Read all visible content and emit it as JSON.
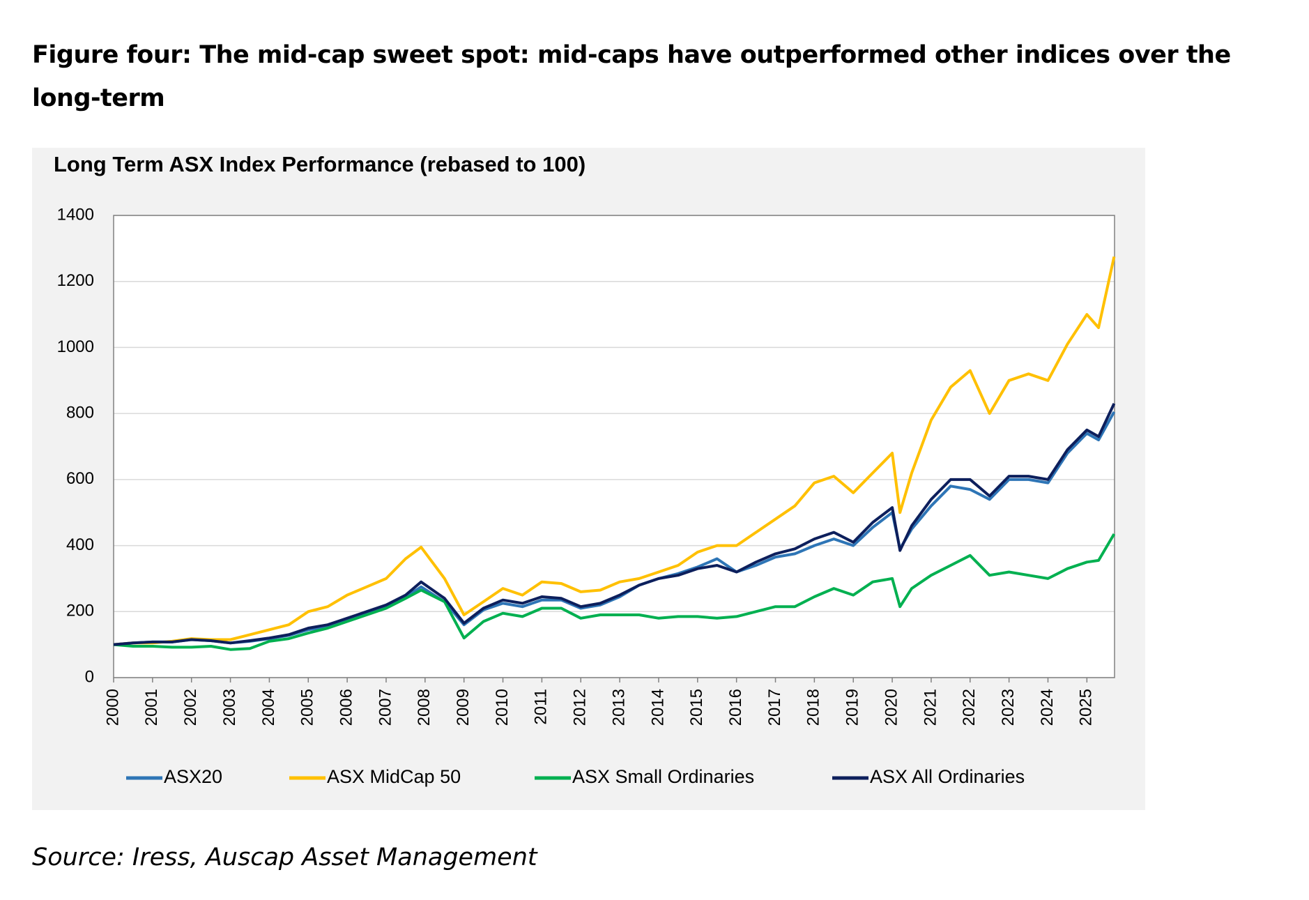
{
  "heading": "Figure four: The mid-cap sweet spot: mid-caps have outperformed other indices over the long-term",
  "source": "Source: Iress, Auscap Asset Management",
  "chart_data": {
    "type": "line",
    "title": "Long Term ASX Index Performance (rebased to 100)",
    "x": [
      2000,
      2000.5,
      2001,
      2001.5,
      2002,
      2002.5,
      2003,
      2003.5,
      2004,
      2004.5,
      2005,
      2005.5,
      2006,
      2006.5,
      2007,
      2007.5,
      2007.9,
      2008.5,
      2009,
      2009.5,
      2010,
      2010.5,
      2011,
      2011.5,
      2012,
      2012.5,
      2013,
      2013.5,
      2014,
      2014.5,
      2015,
      2015.5,
      2016,
      2016.5,
      2017,
      2017.5,
      2018,
      2018.5,
      2019,
      2019.5,
      2020,
      2020.2,
      2020.5,
      2021,
      2021.5,
      2022,
      2022.5,
      2023,
      2023.5,
      2024,
      2024.5,
      2025,
      2025.3,
      2025.7
    ],
    "series": [
      {
        "name": "ASX20",
        "color": "#2e75b6",
        "values": [
          100,
          105,
          108,
          108,
          115,
          112,
          105,
          110,
          118,
          128,
          145,
          155,
          175,
          195,
          215,
          245,
          275,
          230,
          160,
          205,
          225,
          215,
          235,
          235,
          210,
          220,
          245,
          280,
          300,
          315,
          335,
          360,
          320,
          340,
          365,
          375,
          400,
          420,
          400,
          455,
          500,
          390,
          450,
          520,
          580,
          570,
          540,
          600,
          600,
          590,
          680,
          740,
          720,
          805
        ]
      },
      {
        "name": "ASX MidCap 50",
        "color": "#ffc000",
        "values": [
          100,
          105,
          105,
          110,
          118,
          115,
          115,
          130,
          145,
          160,
          200,
          215,
          250,
          275,
          300,
          360,
          395,
          300,
          190,
          230,
          270,
          250,
          290,
          285,
          260,
          265,
          290,
          300,
          320,
          340,
          380,
          400,
          400,
          440,
          480,
          520,
          590,
          610,
          560,
          620,
          680,
          500,
          620,
          780,
          880,
          930,
          800,
          900,
          920,
          900,
          1010,
          1100,
          1060,
          1275
        ]
      },
      {
        "name": "ASX Small Ordinaries",
        "color": "#00b050",
        "values": [
          100,
          95,
          95,
          92,
          92,
          95,
          85,
          88,
          110,
          118,
          135,
          150,
          170,
          190,
          210,
          240,
          265,
          230,
          120,
          170,
          195,
          185,
          210,
          210,
          180,
          190,
          190,
          190,
          180,
          185,
          185,
          180,
          185,
          200,
          215,
          215,
          245,
          270,
          250,
          290,
          300,
          215,
          270,
          310,
          340,
          370,
          310,
          320,
          310,
          300,
          330,
          350,
          355,
          435
        ]
      },
      {
        "name": "ASX All Ordinaries",
        "color": "#0d1f5c",
        "values": [
          100,
          105,
          108,
          108,
          115,
          112,
          105,
          112,
          120,
          130,
          150,
          160,
          180,
          200,
          220,
          250,
          290,
          240,
          165,
          210,
          235,
          225,
          245,
          240,
          215,
          225,
          250,
          280,
          300,
          310,
          330,
          340,
          320,
          350,
          375,
          390,
          420,
          440,
          410,
          470,
          515,
          385,
          460,
          540,
          600,
          600,
          550,
          610,
          610,
          600,
          690,
          750,
          730,
          830
        ]
      }
    ],
    "xlim": [
      2000,
      2025.71
    ],
    "xticks": [
      2000,
      2001,
      2002,
      2003,
      2004,
      2005,
      2006,
      2007,
      2008,
      2009,
      2010,
      2011,
      2012,
      2013,
      2014,
      2015,
      2016,
      2017,
      2018,
      2019,
      2020,
      2021,
      2022,
      2023,
      2024,
      2025
    ],
    "ylim": [
      0,
      1400
    ],
    "yticks": [
      0,
      200,
      400,
      600,
      800,
      1000,
      1200,
      1400
    ],
    "grid": true,
    "legend": "bottom"
  }
}
